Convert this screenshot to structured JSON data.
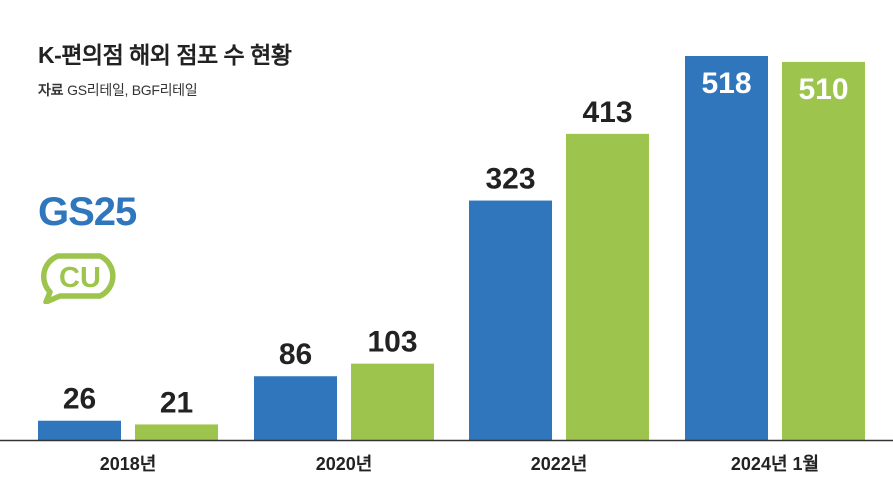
{
  "title": "K-편의점 해외 점포 수 현황",
  "source": {
    "label": "자료",
    "text": "GS리테일, BGF리테일"
  },
  "logos": {
    "gs25": "GS25",
    "cu": "CU"
  },
  "colors": {
    "gs25": "#2f76bd",
    "cu": "#9dc44d",
    "axis": "#333333",
    "text": "#222222"
  },
  "chart_data": {
    "type": "bar",
    "categories": [
      "2018년",
      "2020년",
      "2022년",
      "2024년 1월"
    ],
    "series": [
      {
        "name": "GS25",
        "values": [
          26,
          86,
          323,
          518
        ]
      },
      {
        "name": "CU",
        "values": [
          21,
          103,
          413,
          510
        ]
      }
    ],
    "ylim": [
      0,
      518
    ],
    "grid": false,
    "legend": "left (logos)"
  }
}
